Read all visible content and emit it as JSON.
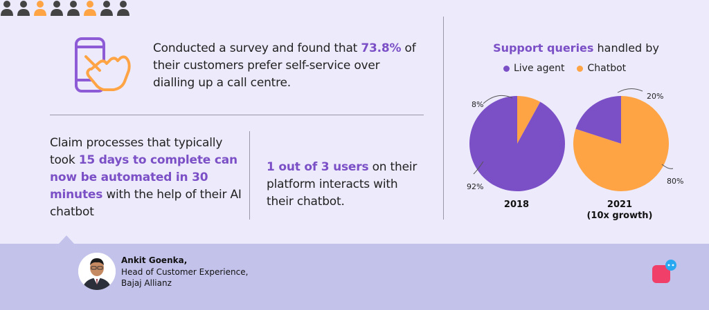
{
  "survey": {
    "text_before": "Conducted a survey and found that ",
    "highlight": "73.8%",
    "text_after": " of their customers prefer self-service over dialling up a call centre."
  },
  "claim": {
    "text_before": "Claim processes that typically took ",
    "highlight": "15 days to complete can now be automated in 30 minutes",
    "text_after": " with the help of their AI chatbot"
  },
  "users": {
    "highlight": "1 out of 3 users",
    "text_after": " on their platform interacts with their chatbot.",
    "icons": [
      "grey",
      "grey",
      "orange",
      "grey",
      "grey",
      "orange",
      "grey",
      "grey"
    ]
  },
  "chart_title": {
    "highlight": "Support queries",
    "rest": " handled by"
  },
  "colors": {
    "live_agent": "#7b4fc6",
    "chatbot": "#ffa444",
    "accent_text": "#7b4fc6",
    "person_grey": "#444444",
    "person_orange": "#ffa444"
  },
  "chart_data": {
    "type": "pie",
    "legend": [
      "Live agent",
      "Chatbot"
    ],
    "legend_placement": "top",
    "pies": [
      {
        "label": "2018",
        "sublabel": "",
        "slices": [
          {
            "name": "Live agent",
            "value": 92,
            "label": "92%"
          },
          {
            "name": "Chatbot",
            "value": 8,
            "label": "8%"
          }
        ]
      },
      {
        "label": "2021",
        "sublabel": "(10x growth)",
        "slices": [
          {
            "name": "Chatbot",
            "value": 80,
            "label": "80%"
          },
          {
            "name": "Live agent",
            "value": 20,
            "label": "20%"
          }
        ]
      }
    ]
  },
  "quote": {
    "name": "Ankit Goenka,",
    "role_line1": "Head of Customer Experience,",
    "role_line2": "Bajaj Allianz"
  },
  "icons": {
    "phone": "phone-tap-icon",
    "brand": "chat-bubble-logo-icon",
    "person": "person-icon"
  }
}
